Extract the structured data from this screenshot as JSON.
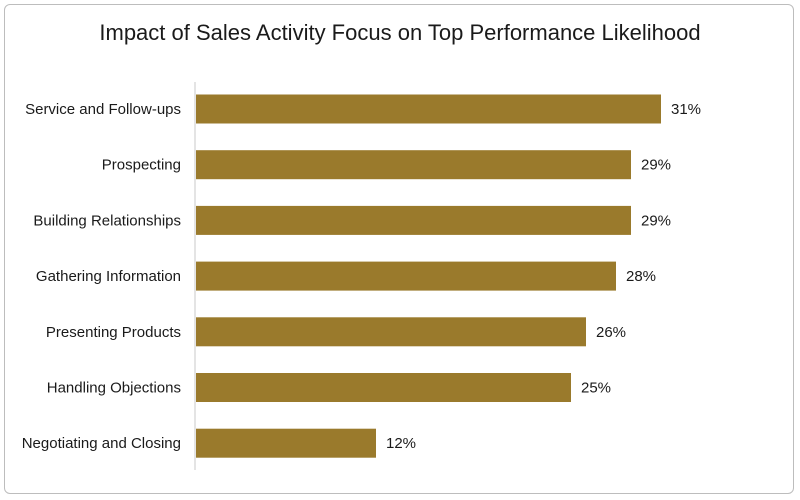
{
  "chart_data": {
    "type": "bar",
    "orientation": "horizontal",
    "title": "Impact of Sales Activity Focus on Top Performance Likelihood",
    "categories": [
      "Service and Follow-ups",
      "Prospecting",
      "Building Relationships",
      "Gathering Information",
      "Presenting Products",
      "Handling Objections",
      "Negotiating and Closing"
    ],
    "values": [
      31,
      29,
      29,
      28,
      26,
      25,
      12
    ],
    "value_labels": [
      "31%",
      "29%",
      "29%",
      "28%",
      "26%",
      "25%",
      "12%"
    ],
    "xlim": [
      0,
      35
    ],
    "grid": false,
    "bar_color": "#9a7a2c"
  }
}
